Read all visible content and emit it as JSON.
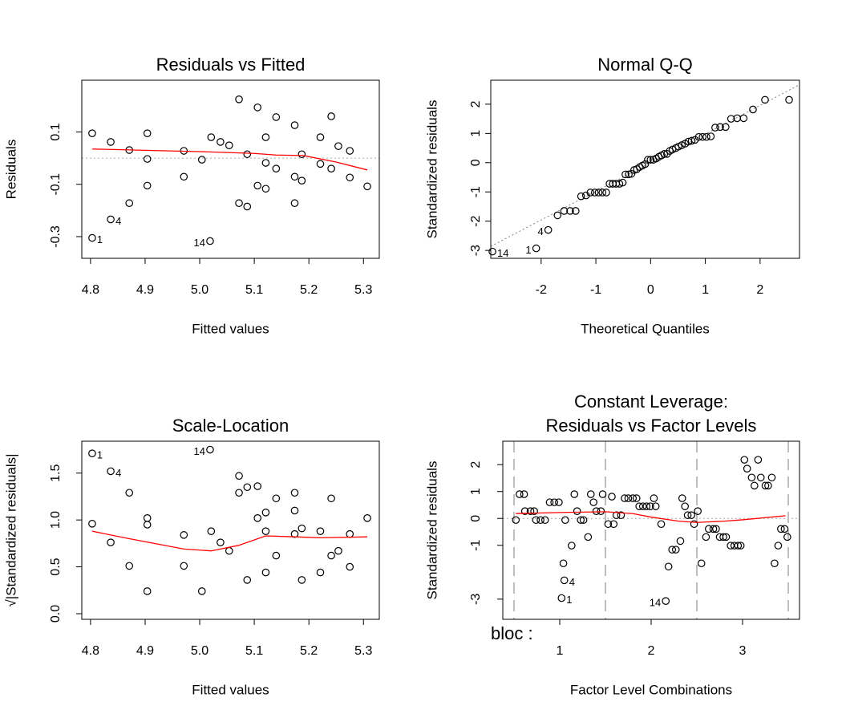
{
  "chart_data": [
    {
      "type": "scatter",
      "title": [
        "Residuals vs Fitted"
      ],
      "xlabel": "Fitted values",
      "ylabel": "Residuals",
      "xlim": [
        4.784,
        5.329
      ],
      "ylim": [
        -0.383,
        0.298
      ],
      "xticks": [
        4.8,
        4.9,
        {
          "value": 5,
          "label": "5.0"
        },
        5.1,
        5.2,
        5.3
      ],
      "yticks": [
        -0.3,
        -0.1,
        0.1
      ],
      "hline": 0,
      "points": {
        "color": "#000000",
        "x": [
          4.803,
          4.803,
          4.837,
          4.837,
          4.871,
          4.871,
          4.904,
          4.904,
          4.904,
          4.971,
          4.971,
          5.004,
          5.019,
          5.021,
          5.038,
          5.054,
          5.072,
          5.072,
          5.087,
          5.087,
          5.106,
          5.106,
          5.121,
          5.121,
          5.121,
          5.14,
          5.14,
          5.174,
          5.174,
          5.174,
          5.187,
          5.187,
          5.221,
          5.221,
          5.241,
          5.241,
          5.254,
          5.275,
          5.275,
          5.307
        ],
        "y": [
          0.095,
          -0.305,
          0.062,
          -0.234,
          0.031,
          -0.172,
          0.095,
          -0.003,
          -0.105,
          0.028,
          -0.071,
          -0.006,
          -0.317,
          0.08,
          0.062,
          0.049,
          0.225,
          -0.172,
          0.015,
          -0.185,
          0.194,
          -0.105,
          0.08,
          -0.018,
          -0.117,
          0.157,
          -0.04,
          0.126,
          -0.071,
          -0.172,
          0.015,
          -0.086,
          0.08,
          -0.022,
          0.16,
          -0.04,
          0.046,
          0.028,
          -0.074,
          -0.108
        ]
      },
      "smooth": {
        "color": "#ff0000",
        "x": [
          4.803,
          4.9,
          5.0,
          5.1,
          5.14,
          5.19,
          5.25,
          5.307
        ],
        "y": [
          0.035,
          0.03,
          0.025,
          0.018,
          0.012,
          0.01,
          -0.015,
          -0.045
        ]
      },
      "annotations": [
        {
          "text": "1",
          "x": 4.803,
          "y": -0.305,
          "side": "right"
        },
        {
          "text": "4",
          "x": 4.837,
          "y": -0.234,
          "side": "right"
        },
        {
          "text": "14",
          "x": 5.019,
          "y": -0.317,
          "side": "left"
        }
      ]
    },
    {
      "type": "scatter",
      "title": [
        "Normal Q-Q"
      ],
      "xlabel": "Theoretical Quantiles",
      "ylabel": "Standardized residuals",
      "xlim": [
        -2.92,
        2.72
      ],
      "ylim": [
        -3.27,
        2.82
      ],
      "xticks": [
        -2,
        -1,
        0,
        1,
        2
      ],
      "yticks": [
        -3,
        -2,
        -1,
        0,
        1,
        2
      ],
      "abline": {
        "intercept": 0,
        "slope": 0.98
      },
      "points": {
        "color": "#000000",
        "x": [
          -2.89,
          -2.09,
          -1.87,
          -1.7,
          -1.58,
          -1.47,
          -1.37,
          -1.27,
          -1.18,
          -1.1,
          -1.02,
          -0.95,
          -0.88,
          -0.81,
          -0.75,
          -0.69,
          -0.63,
          -0.57,
          -0.51,
          -0.46,
          -0.4,
          -0.35,
          -0.3,
          -0.25,
          -0.2,
          -0.15,
          -0.1,
          -0.05,
          0,
          0.05,
          0.1,
          0.15,
          0.2,
          0.25,
          0.3,
          0.35,
          0.4,
          0.46,
          0.51,
          0.57,
          0.63,
          0.69,
          0.75,
          0.81,
          0.88,
          0.95,
          1.02,
          1.1,
          1.18,
          1.27,
          1.37,
          1.47,
          1.58,
          1.7,
          1.87,
          2.09,
          2.53
        ],
        "y": [
          -3.04,
          -2.93,
          -2.3,
          -1.8,
          -1.65,
          -1.65,
          -1.65,
          -1.15,
          -1.12,
          -1.02,
          -1.02,
          -1.02,
          -1.02,
          -1.02,
          -0.72,
          -0.72,
          -0.72,
          -0.72,
          -0.68,
          -0.4,
          -0.4,
          -0.38,
          -0.25,
          -0.22,
          -0.15,
          -0.1,
          -0.05,
          0.1,
          0.1,
          0.1,
          0.14,
          0.2,
          0.25,
          0.3,
          0.3,
          0.4,
          0.45,
          0.5,
          0.55,
          0.6,
          0.65,
          0.72,
          0.75,
          0.78,
          0.88,
          0.88,
          0.88,
          0.9,
          1.2,
          1.22,
          1.22,
          1.5,
          1.52,
          1.52,
          1.82,
          2.15,
          2.15
        ]
      },
      "annotations": [
        {
          "text": "14",
          "x": -2.89,
          "y": -3.04,
          "side": "right"
        },
        {
          "text": "1",
          "x": -2.09,
          "y": -2.93,
          "side": "left"
        },
        {
          "text": "4",
          "x": -1.87,
          "y": -2.3,
          "side": "left"
        }
      ]
    },
    {
      "type": "scatter",
      "title": [
        "Scale-Location"
      ],
      "xlabel": "Fitted values",
      "ylabel": "√|Standardized residuals|",
      "xlim": [
        4.784,
        5.329
      ],
      "ylim": [
        -0.06,
        1.84
      ],
      "xticks": [
        4.8,
        4.9,
        {
          "value": 5,
          "label": "5.0"
        },
        5.1,
        5.2,
        5.3
      ],
      "yticks": [
        {
          "value": 0,
          "label": "0.0"
        },
        0.5,
        {
          "value": 1,
          "label": "1.0"
        },
        1.5
      ],
      "points": {
        "color": "#000000",
        "x": [
          4.803,
          4.803,
          4.837,
          4.837,
          4.871,
          4.871,
          4.904,
          4.904,
          4.904,
          4.971,
          4.971,
          5.004,
          5.019,
          5.021,
          5.038,
          5.054,
          5.072,
          5.072,
          5.087,
          5.087,
          5.106,
          5.106,
          5.121,
          5.121,
          5.121,
          5.14,
          5.14,
          5.174,
          5.174,
          5.174,
          5.187,
          5.187,
          5.221,
          5.221,
          5.241,
          5.241,
          5.254,
          5.275,
          5.275,
          5.307
        ],
        "y": [
          1.71,
          0.96,
          1.52,
          0.76,
          1.29,
          0.51,
          1.02,
          0.95,
          0.24,
          0.84,
          0.51,
          0.24,
          1.75,
          0.88,
          0.76,
          0.67,
          1.47,
          1.29,
          1.35,
          0.36,
          1.36,
          1.02,
          1.08,
          0.88,
          0.44,
          1.23,
          0.62,
          1.29,
          1.1,
          0.85,
          0.91,
          0.36,
          0.88,
          0.44,
          1.23,
          0.62,
          0.67,
          0.85,
          0.5,
          1.02
        ]
      },
      "smooth": {
        "color": "#ff0000",
        "x": [
          4.803,
          4.871,
          4.971,
          5.021,
          5.072,
          5.121,
          5.174,
          5.221,
          5.307
        ],
        "y": [
          0.88,
          0.8,
          0.69,
          0.67,
          0.73,
          0.83,
          0.82,
          0.81,
          0.82
        ]
      },
      "annotations": [
        {
          "text": "1",
          "x": 4.803,
          "y": 1.71,
          "side": "right"
        },
        {
          "text": "4",
          "x": 4.837,
          "y": 1.52,
          "side": "right"
        },
        {
          "text": "14",
          "x": 5.019,
          "y": 1.75,
          "side": "left"
        }
      ]
    },
    {
      "type": "scatter",
      "title": [
        "Constant Leverage:",
        "Residuals vs Factor Levels"
      ],
      "xlabel": "Factor Level Combinations",
      "ylabel": "Standardized residuals",
      "factor_label": "bloc :",
      "xlim": [
        0.377,
        3.623
      ],
      "ylim": [
        -3.75,
        2.87
      ],
      "xticks": [
        1,
        2,
        3
      ],
      "yticks": [
        -3,
        -1,
        0,
        1,
        2
      ],
      "hline": 0,
      "vlines": [
        0.5,
        1.5,
        2.5,
        3.5
      ],
      "points": {
        "color": "#000000",
        "x": [
          0.52,
          0.56,
          0.61,
          0.62,
          0.68,
          0.72,
          0.74,
          0.79,
          0.84,
          0.89,
          0.94,
          0.99,
          1.04,
          1.06,
          1.05,
          1.02,
          1.13,
          1.16,
          1.19,
          1.23,
          1.26,
          1.31,
          1.34,
          1.37,
          1.4,
          1.45,
          1.47,
          1.53,
          1.57,
          1.59,
          1.62,
          1.67,
          1.71,
          1.75,
          1.8,
          1.84,
          1.87,
          1.91,
          1.95,
          1.99,
          2.03,
          2.05,
          2.11,
          2.16,
          2.19,
          2.23,
          2.27,
          2.32,
          2.34,
          2.37,
          2.4,
          2.44,
          2.47,
          2.51,
          2.55,
          2.6,
          2.63,
          2.68,
          2.71,
          2.75,
          2.79,
          2.82,
          2.87,
          2.91,
          2.95,
          2.98,
          3.02,
          3.05,
          3.1,
          3.13,
          3.17,
          3.2,
          3.25,
          3.28,
          3.32,
          3.35,
          3.39,
          3.42,
          3.46,
          3.49
        ],
        "y": [
          -0.06,
          0.9,
          0.9,
          0.27,
          0.27,
          0.27,
          -0.06,
          -0.06,
          -0.06,
          0.6,
          0.6,
          0.6,
          -1.67,
          -0.06,
          -2.3,
          -2.96,
          -1.01,
          0.9,
          0.27,
          -0.06,
          -0.06,
          -0.69,
          0.9,
          0.6,
          0.27,
          0.27,
          0.9,
          -0.21,
          0.81,
          -0.21,
          0.12,
          0.12,
          0.75,
          0.75,
          0.75,
          0.75,
          0.45,
          0.45,
          0.45,
          0.45,
          0.75,
          0.45,
          -0.21,
          -3.07,
          -1.79,
          -1.16,
          -1.16,
          -0.84,
          0.75,
          0.45,
          0.12,
          0.12,
          -0.21,
          0.27,
          -1.67,
          -0.69,
          -0.39,
          -0.39,
          -0.39,
          -0.69,
          -0.69,
          -0.69,
          -1.01,
          -1.01,
          -1.01,
          -1.01,
          2.18,
          1.85,
          1.52,
          1.22,
          2.18,
          1.52,
          1.22,
          1.22,
          1.52,
          -1.67,
          -1.01,
          -0.39,
          -0.39,
          -0.69
        ]
      },
      "smooth": {
        "color": "#ff0000",
        "x": [
          0.52,
          1.0,
          1.5,
          1.8,
          2.0,
          2.3,
          2.5,
          2.8,
          3.0,
          3.47
        ],
        "y": [
          0.18,
          0.22,
          0.25,
          0.18,
          0.05,
          -0.1,
          -0.15,
          -0.1,
          -0.05,
          0.1
        ]
      },
      "annotations": [
        {
          "text": "4",
          "x": 1.05,
          "y": -2.3,
          "side": "right"
        },
        {
          "text": "1",
          "x": 1.02,
          "y": -2.96,
          "side": "right"
        },
        {
          "text": "14",
          "x": 2.16,
          "y": -3.07,
          "side": "left"
        }
      ]
    }
  ]
}
